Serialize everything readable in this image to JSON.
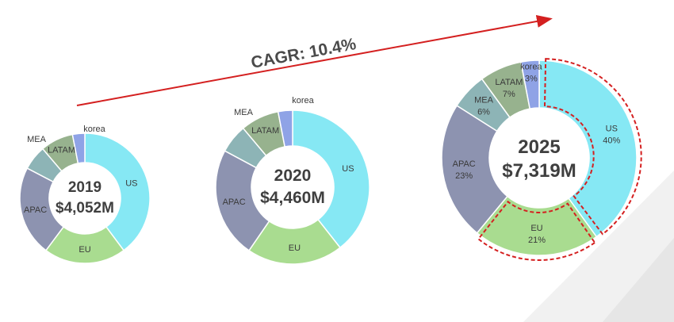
{
  "annotation": {
    "cagr_label": "CAGR: 10.4%"
  },
  "colors": {
    "US": "#86E8F4",
    "EU": "#A9DC90",
    "APAC": "#8D93B0",
    "MEA": "#8DB4B6",
    "LATAM": "#97B28E",
    "korea": "#8FA3E6",
    "arrow": "#D42020",
    "highlight": "#D42020"
  },
  "chart_data": [
    {
      "type": "pie",
      "center_year": "2019",
      "center_total": "$4,052M",
      "slices": [
        {
          "label": "US",
          "value": 39,
          "pct_label": ""
        },
        {
          "label": "EU",
          "value": 20,
          "pct_label": ""
        },
        {
          "label": "APAC",
          "value": 22,
          "pct_label": ""
        },
        {
          "label": "MEA",
          "value": 6,
          "pct_label": ""
        },
        {
          "label": "LATAM",
          "value": 8,
          "pct_label": ""
        },
        {
          "label": "korea",
          "value": 3,
          "pct_label": ""
        }
      ]
    },
    {
      "type": "pie",
      "center_year": "2020",
      "center_total": "$4,460M",
      "slices": [
        {
          "label": "US",
          "value": 39,
          "pct_label": ""
        },
        {
          "label": "EU",
          "value": 20,
          "pct_label": ""
        },
        {
          "label": "APAC",
          "value": 23,
          "pct_label": ""
        },
        {
          "label": "MEA",
          "value": 6,
          "pct_label": ""
        },
        {
          "label": "LATAM",
          "value": 8,
          "pct_label": ""
        },
        {
          "label": "korea",
          "value": 3,
          "pct_label": ""
        }
      ]
    },
    {
      "type": "pie",
      "center_year": "2025",
      "center_total": "$7,319M",
      "slices": [
        {
          "label": "US",
          "value": 40,
          "pct_label": "40%",
          "highlighted": true
        },
        {
          "label": "EU",
          "value": 21,
          "pct_label": "21%",
          "highlighted": true
        },
        {
          "label": "APAC",
          "value": 23,
          "pct_label": "23%"
        },
        {
          "label": "MEA",
          "value": 6,
          "pct_label": "6%"
        },
        {
          "label": "LATAM",
          "value": 7,
          "pct_label": "7%"
        },
        {
          "label": "korea",
          "value": 3,
          "pct_label": "3%"
        }
      ]
    }
  ]
}
